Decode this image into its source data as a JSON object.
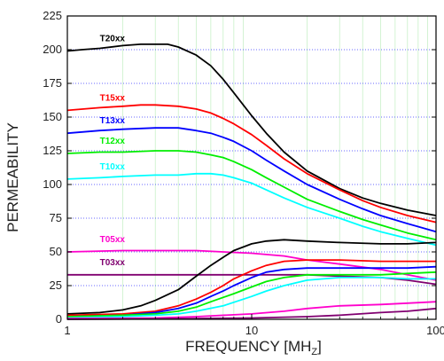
{
  "chart_data": {
    "type": "line",
    "title": "",
    "xlabel": "FREQUENCY [MH",
    "xlabel_subscript": "Z",
    "xlabel_close": "]",
    "ylabel": "PERMEABILITY",
    "x_scale": "log",
    "xlim": [
      1,
      100
    ],
    "ylim": [
      0,
      225
    ],
    "x_tick_labels": [
      "1",
      "10",
      "100"
    ],
    "y_ticks": [
      0,
      25,
      50,
      75,
      100,
      125,
      150,
      175,
      200,
      225
    ],
    "grid": {
      "horizontal": "dotted blue lines at every y tick",
      "vertical": "light green lines at log minor ticks"
    },
    "legend": "inline labels at left of each real-permeability curve",
    "series": [
      {
        "name": "T20xx",
        "color": "#000000",
        "points": [
          [
            1,
            199
          ],
          [
            1.2,
            200
          ],
          [
            1.5,
            201
          ],
          [
            2,
            203
          ],
          [
            2.5,
            204
          ],
          [
            3,
            204
          ],
          [
            3.5,
            204
          ],
          [
            4,
            202
          ],
          [
            5,
            196
          ],
          [
            6,
            188
          ],
          [
            7,
            178
          ],
          [
            8,
            168
          ],
          [
            10,
            151
          ],
          [
            12,
            138
          ],
          [
            15,
            124
          ],
          [
            20,
            110
          ],
          [
            30,
            97
          ],
          [
            40,
            90
          ],
          [
            50,
            86
          ],
          [
            70,
            81
          ],
          [
            100,
            77
          ]
        ]
      },
      {
        "name": "T15xx",
        "color": "#ff0000",
        "points": [
          [
            1,
            155
          ],
          [
            1.5,
            157
          ],
          [
            2,
            158
          ],
          [
            2.5,
            159
          ],
          [
            3,
            159
          ],
          [
            4,
            158
          ],
          [
            5,
            156
          ],
          [
            6,
            153
          ],
          [
            7,
            149
          ],
          [
            8,
            145
          ],
          [
            10,
            137
          ],
          [
            12,
            129
          ],
          [
            15,
            119
          ],
          [
            20,
            108
          ],
          [
            30,
            96
          ],
          [
            40,
            88
          ],
          [
            50,
            83
          ],
          [
            70,
            77
          ],
          [
            100,
            72
          ]
        ]
      },
      {
        "name": "T13xx",
        "color": "#0000ff",
        "points": [
          [
            1,
            138
          ],
          [
            1.5,
            140
          ],
          [
            2,
            141
          ],
          [
            3,
            142
          ],
          [
            4,
            142
          ],
          [
            5,
            140
          ],
          [
            6,
            138
          ],
          [
            7,
            135
          ],
          [
            8,
            132
          ],
          [
            10,
            125
          ],
          [
            12,
            118
          ],
          [
            15,
            110
          ],
          [
            20,
            100
          ],
          [
            30,
            89
          ],
          [
            40,
            82
          ],
          [
            50,
            77
          ],
          [
            70,
            71
          ],
          [
            100,
            65
          ]
        ]
      },
      {
        "name": "T12xx",
        "color": "#00ee00",
        "points": [
          [
            1,
            123
          ],
          [
            1.5,
            124
          ],
          [
            2,
            124
          ],
          [
            3,
            125
          ],
          [
            4,
            125
          ],
          [
            5,
            124
          ],
          [
            6,
            122
          ],
          [
            7,
            120
          ],
          [
            8,
            117
          ],
          [
            10,
            111
          ],
          [
            12,
            105
          ],
          [
            15,
            98
          ],
          [
            20,
            89
          ],
          [
            30,
            80
          ],
          [
            40,
            74
          ],
          [
            50,
            70
          ],
          [
            70,
            64
          ],
          [
            100,
            59
          ]
        ]
      },
      {
        "name": "T10xx",
        "color": "#00ffff",
        "points": [
          [
            1,
            104
          ],
          [
            1.5,
            105
          ],
          [
            2,
            106
          ],
          [
            3,
            107
          ],
          [
            4,
            107
          ],
          [
            5,
            108
          ],
          [
            6,
            108
          ],
          [
            7,
            107
          ],
          [
            8,
            105
          ],
          [
            10,
            101
          ],
          [
            12,
            96
          ],
          [
            15,
            90
          ],
          [
            20,
            83
          ],
          [
            30,
            75
          ],
          [
            40,
            69
          ],
          [
            50,
            65
          ],
          [
            70,
            60
          ],
          [
            100,
            55
          ]
        ]
      },
      {
        "name": "T05xx",
        "color": "#ff00cc",
        "points": [
          [
            1,
            50
          ],
          [
            2,
            51
          ],
          [
            3,
            51
          ],
          [
            5,
            51
          ],
          [
            7,
            50
          ],
          [
            10,
            49
          ],
          [
            15,
            47
          ],
          [
            20,
            44
          ],
          [
            30,
            41
          ],
          [
            50,
            37
          ],
          [
            70,
            33
          ],
          [
            100,
            29
          ]
        ]
      },
      {
        "name": "T03xx",
        "color": "#800070",
        "points": [
          [
            1,
            33
          ],
          [
            2,
            33
          ],
          [
            5,
            33
          ],
          [
            10,
            33
          ],
          [
            20,
            33
          ],
          [
            30,
            32
          ],
          [
            50,
            31
          ],
          [
            70,
            29
          ],
          [
            100,
            26
          ]
        ]
      },
      {
        "name": "",
        "color": "#000000",
        "points": [
          [
            1,
            4
          ],
          [
            1.5,
            5
          ],
          [
            2,
            7
          ],
          [
            2.5,
            10
          ],
          [
            3,
            14
          ],
          [
            4,
            22
          ],
          [
            5,
            32
          ],
          [
            6,
            40
          ],
          [
            7,
            46
          ],
          [
            8,
            51
          ],
          [
            10,
            56
          ],
          [
            12,
            58
          ],
          [
            15,
            59
          ],
          [
            20,
            58
          ],
          [
            30,
            57
          ],
          [
            50,
            56
          ],
          [
            70,
            56
          ],
          [
            100,
            57
          ]
        ]
      },
      {
        "name": "",
        "color": "#ff0000",
        "points": [
          [
            1,
            3
          ],
          [
            2,
            4
          ],
          [
            3,
            6
          ],
          [
            4,
            10
          ],
          [
            5,
            15
          ],
          [
            6,
            20
          ],
          [
            7,
            25
          ],
          [
            8,
            30
          ],
          [
            10,
            36
          ],
          [
            12,
            40
          ],
          [
            15,
            43
          ],
          [
            20,
            44
          ],
          [
            30,
            44
          ],
          [
            50,
            43
          ],
          [
            70,
            43
          ],
          [
            100,
            43
          ]
        ]
      },
      {
        "name": "",
        "color": "#0000ff",
        "points": [
          [
            1,
            2
          ],
          [
            2,
            3
          ],
          [
            3,
            5
          ],
          [
            4,
            8
          ],
          [
            5,
            12
          ],
          [
            6,
            17
          ],
          [
            7,
            21
          ],
          [
            8,
            25
          ],
          [
            10,
            31
          ],
          [
            12,
            35
          ],
          [
            15,
            37
          ],
          [
            20,
            38
          ],
          [
            30,
            38
          ],
          [
            50,
            38
          ],
          [
            70,
            38
          ],
          [
            100,
            39
          ]
        ]
      },
      {
        "name": "",
        "color": "#00ee00",
        "points": [
          [
            1,
            2
          ],
          [
            2,
            3
          ],
          [
            3,
            4
          ],
          [
            4,
            6
          ],
          [
            5,
            9
          ],
          [
            6,
            13
          ],
          [
            8,
            19
          ],
          [
            10,
            24
          ],
          [
            12,
            28
          ],
          [
            15,
            31
          ],
          [
            20,
            33
          ],
          [
            30,
            33
          ],
          [
            50,
            33
          ],
          [
            70,
            34
          ],
          [
            100,
            35
          ]
        ]
      },
      {
        "name": "",
        "color": "#00ffff",
        "points": [
          [
            1,
            1
          ],
          [
            2,
            2
          ],
          [
            3,
            3
          ],
          [
            4,
            4
          ],
          [
            5,
            6
          ],
          [
            7,
            10
          ],
          [
            10,
            17
          ],
          [
            12,
            21
          ],
          [
            15,
            25
          ],
          [
            20,
            29
          ],
          [
            30,
            31
          ],
          [
            50,
            31
          ],
          [
            70,
            30
          ],
          [
            100,
            30
          ]
        ]
      },
      {
        "name": "",
        "color": "#ff00cc",
        "points": [
          [
            1,
            0.5
          ],
          [
            3,
            1
          ],
          [
            5,
            2
          ],
          [
            10,
            4
          ],
          [
            15,
            6
          ],
          [
            20,
            8
          ],
          [
            30,
            10
          ],
          [
            50,
            11
          ],
          [
            70,
            12
          ],
          [
            100,
            13
          ]
        ]
      },
      {
        "name": "",
        "color": "#800070",
        "points": [
          [
            1,
            0
          ],
          [
            5,
            0.5
          ],
          [
            10,
            1
          ],
          [
            20,
            2
          ],
          [
            30,
            3
          ],
          [
            50,
            5
          ],
          [
            70,
            6
          ],
          [
            100,
            8
          ]
        ]
      }
    ]
  }
}
